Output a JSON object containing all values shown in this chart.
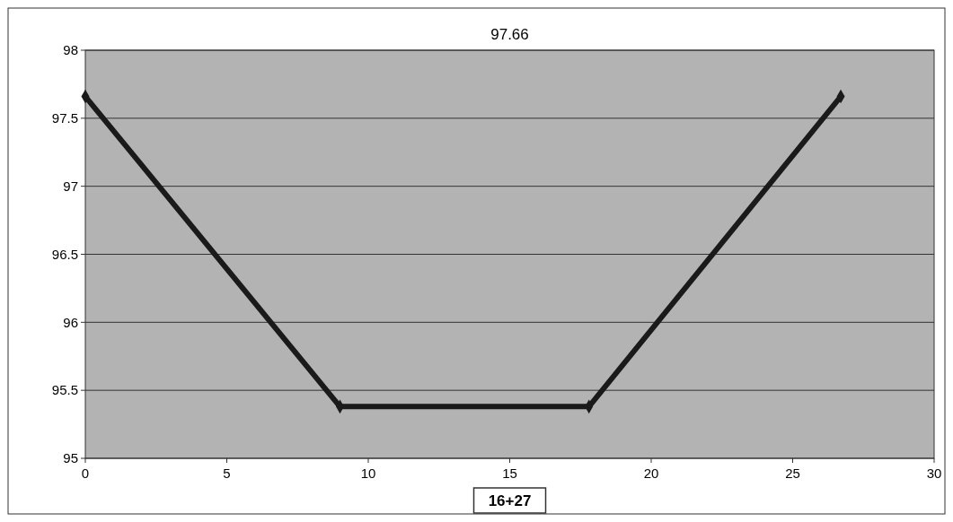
{
  "chart_data": {
    "type": "line",
    "title": "97.66",
    "xlabel": "16+27",
    "x": [
      0,
      9,
      17.8,
      26.7
    ],
    "series": [
      {
        "color": "#1a1a1a",
        "values": [
          97.66,
          95.38,
          95.38,
          97.66
        ]
      }
    ],
    "xlim": [
      0,
      30
    ],
    "xticks": [
      0,
      5,
      10,
      15,
      20,
      25,
      30
    ],
    "ylim": [
      95,
      98
    ],
    "yticks": [
      95,
      95.5,
      96,
      96.5,
      97,
      97.5,
      98
    ],
    "grid": "y",
    "marker": "diamond",
    "line_style": "solid"
  }
}
